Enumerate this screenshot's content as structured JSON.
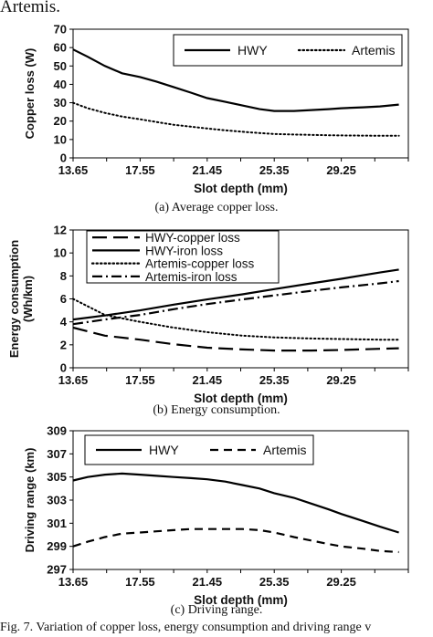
{
  "top_fragment": "Artemis.",
  "figure_caption": "Fig. 7.  Variation of copper loss, energy consumption and driving range v",
  "chart_data": [
    {
      "type": "line",
      "caption": "(a) Average copper loss.",
      "xlabel": "Slot depth (mm)",
      "ylabel": "Copper loss (W)",
      "xticks": [
        "13.65",
        "17.55",
        "21.45",
        "25.35",
        "29.25"
      ],
      "yticks": [
        "0",
        "10",
        "20",
        "30",
        "40",
        "50",
        "60",
        "70"
      ],
      "xlim": [
        13.65,
        33.15
      ],
      "ylim": [
        0,
        70
      ],
      "grid": false,
      "legend": "top-right",
      "series": [
        {
          "name": "HWY",
          "style": "solid",
          "x": [
            13.65,
            14.5,
            15.5,
            16.5,
            17.55,
            18.5,
            19.5,
            20.5,
            21.45,
            22.5,
            23.5,
            24.5,
            25.35,
            26.5,
            27.5,
            28.5,
            29.25,
            30.5,
            31.5,
            32.6
          ],
          "y": [
            59,
            55,
            50,
            46,
            44,
            41.5,
            38.5,
            35.5,
            32.5,
            30.5,
            28.5,
            26.5,
            25.5,
            25.5,
            26,
            26.5,
            27,
            27.5,
            28,
            29
          ]
        },
        {
          "name": "Artemis",
          "style": "dotted",
          "x": [
            13.65,
            14.5,
            15.5,
            16.5,
            17.55,
            18.5,
            19.5,
            20.5,
            21.45,
            22.5,
            23.5,
            24.5,
            25.35,
            26.5,
            27.5,
            28.5,
            29.25,
            30.5,
            31.5,
            32.6
          ],
          "y": [
            30,
            27,
            24.5,
            22.5,
            21,
            19.5,
            18,
            17,
            16,
            15,
            14.2,
            13.5,
            13,
            12.7,
            12.5,
            12.3,
            12.2,
            12.1,
            12,
            12
          ]
        }
      ]
    },
    {
      "type": "line",
      "caption": "(b) Energy consumption.",
      "xlabel": "Slot depth (mm)",
      "ylabel": "Energy consumption (Wh/km)",
      "ylabel_lines": [
        "Energy consumption",
        "(Wh/km)"
      ],
      "xticks": [
        "13.65",
        "17.55",
        "21.45",
        "25.35",
        "29.25"
      ],
      "yticks": [
        "0",
        "2",
        "4",
        "6",
        "8",
        "10",
        "12"
      ],
      "xlim": [
        13.65,
        33.15
      ],
      "ylim": [
        0,
        12
      ],
      "grid": false,
      "legend": "top-left",
      "series": [
        {
          "name": "HWY-copper loss",
          "style": "long-dash",
          "x": [
            13.65,
            15.5,
            17.55,
            19.5,
            21.45,
            23.5,
            25.35,
            27.5,
            29.25,
            31.5,
            32.6
          ],
          "y": [
            3.5,
            2.8,
            2.45,
            2.05,
            1.75,
            1.6,
            1.5,
            1.5,
            1.55,
            1.65,
            1.7
          ]
        },
        {
          "name": "HWY-iron loss",
          "style": "solid",
          "x": [
            13.65,
            15.5,
            17.55,
            19.5,
            21.45,
            23.5,
            25.35,
            27.5,
            29.25,
            31.5,
            32.6
          ],
          "y": [
            4.2,
            4.55,
            5.0,
            5.5,
            5.95,
            6.4,
            6.85,
            7.35,
            7.75,
            8.3,
            8.55
          ]
        },
        {
          "name": "Artemis-copper loss",
          "style": "dotted",
          "x": [
            13.65,
            15.5,
            17.55,
            19.5,
            21.45,
            23.5,
            25.35,
            27.5,
            29.25,
            31.5,
            32.6
          ],
          "y": [
            6.0,
            4.6,
            4.0,
            3.5,
            3.1,
            2.8,
            2.65,
            2.55,
            2.5,
            2.45,
            2.45
          ]
        },
        {
          "name": "Artemis-iron loss",
          "style": "dash-dot",
          "x": [
            13.65,
            15.5,
            17.55,
            19.5,
            21.45,
            23.5,
            25.35,
            27.5,
            29.25,
            31.5,
            32.6
          ],
          "y": [
            3.8,
            4.2,
            4.6,
            5.1,
            5.55,
            5.95,
            6.3,
            6.7,
            7.0,
            7.35,
            7.55
          ]
        }
      ]
    },
    {
      "type": "line",
      "caption": "(c) Driving range.",
      "xlabel": "Slot depth (mm)",
      "ylabel": "Driving range (km)",
      "xticks": [
        "13.65",
        "17.55",
        "21.45",
        "25.35",
        "29.25"
      ],
      "yticks": [
        "297",
        "299",
        "301",
        "303",
        "305",
        "307",
        "309"
      ],
      "xlim": [
        13.65,
        33.15
      ],
      "ylim": [
        297,
        309
      ],
      "grid": false,
      "legend": "top-right",
      "series": [
        {
          "name": "HWY",
          "style": "solid",
          "x": [
            13.65,
            14.5,
            15.5,
            16.5,
            17.55,
            18.5,
            19.5,
            20.5,
            21.45,
            22.5,
            23.5,
            24.5,
            25.35,
            26.5,
            27.5,
            28.5,
            29.25,
            30.5,
            31.5,
            32.6
          ],
          "y": [
            304.7,
            305.0,
            305.2,
            305.3,
            305.2,
            305.1,
            305.0,
            304.9,
            304.8,
            304.6,
            304.3,
            304.0,
            303.6,
            303.2,
            302.7,
            302.2,
            301.8,
            301.2,
            300.7,
            300.2
          ]
        },
        {
          "name": "Artemis",
          "style": "dashed",
          "x": [
            13.65,
            14.5,
            15.5,
            16.5,
            17.55,
            18.5,
            19.5,
            20.5,
            21.45,
            22.5,
            23.5,
            24.5,
            25.35,
            26.5,
            27.5,
            28.5,
            29.25,
            30.5,
            31.5,
            32.6
          ],
          "y": [
            299.0,
            299.4,
            299.8,
            300.1,
            300.2,
            300.3,
            300.4,
            300.5,
            300.5,
            300.5,
            300.5,
            300.4,
            300.2,
            299.8,
            299.5,
            299.2,
            299.0,
            298.8,
            298.6,
            298.5
          ]
        }
      ]
    }
  ]
}
